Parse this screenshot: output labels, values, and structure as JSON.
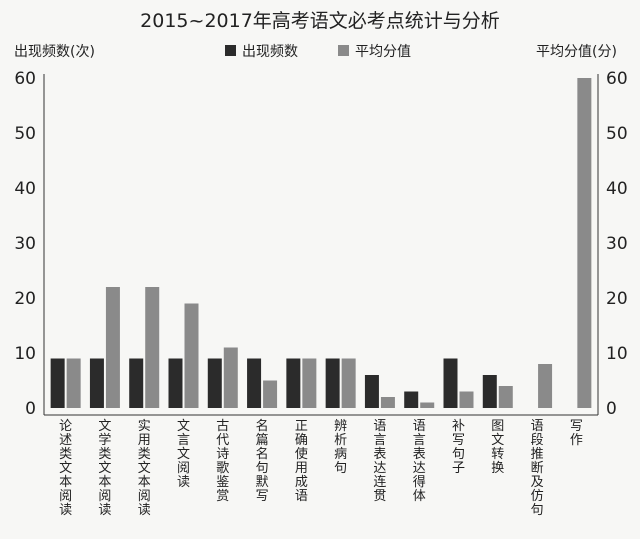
{
  "chart_data": {
    "type": "bar",
    "title": "2015~2017年高考语文必考点统计与分析",
    "ylabel_left": "出现频数(次)",
    "ylabel_right": "平均分值(分)",
    "ylim": [
      0,
      60
    ],
    "y_ticks": [
      "0",
      "10",
      "20",
      "30",
      "40",
      "50",
      "60"
    ],
    "grid": false,
    "legend_position": "top-center",
    "categories": [
      "论述类文本阅读",
      "文学类文本阅读",
      "实用类文本阅读",
      "文言文阅读",
      "古代诗歌鉴赏",
      "名篇名句默写",
      "正确使用成语",
      "辨析病句",
      "语言表达连贯",
      "语言表达得体",
      "补写句子",
      "图文转换",
      "语段推断及仿句",
      "写作"
    ],
    "series": [
      {
        "name": "出现频数",
        "color": "#2b2b2b",
        "values": [
          9,
          9,
          9,
          9,
          9,
          9,
          9,
          9,
          6,
          3,
          9,
          6,
          0,
          0
        ]
      },
      {
        "name": "平均分值",
        "color": "#8a8a8a",
        "values": [
          9,
          22,
          22,
          19,
          11,
          5,
          9,
          9,
          2,
          1,
          3,
          4,
          8,
          60
        ]
      }
    ]
  }
}
